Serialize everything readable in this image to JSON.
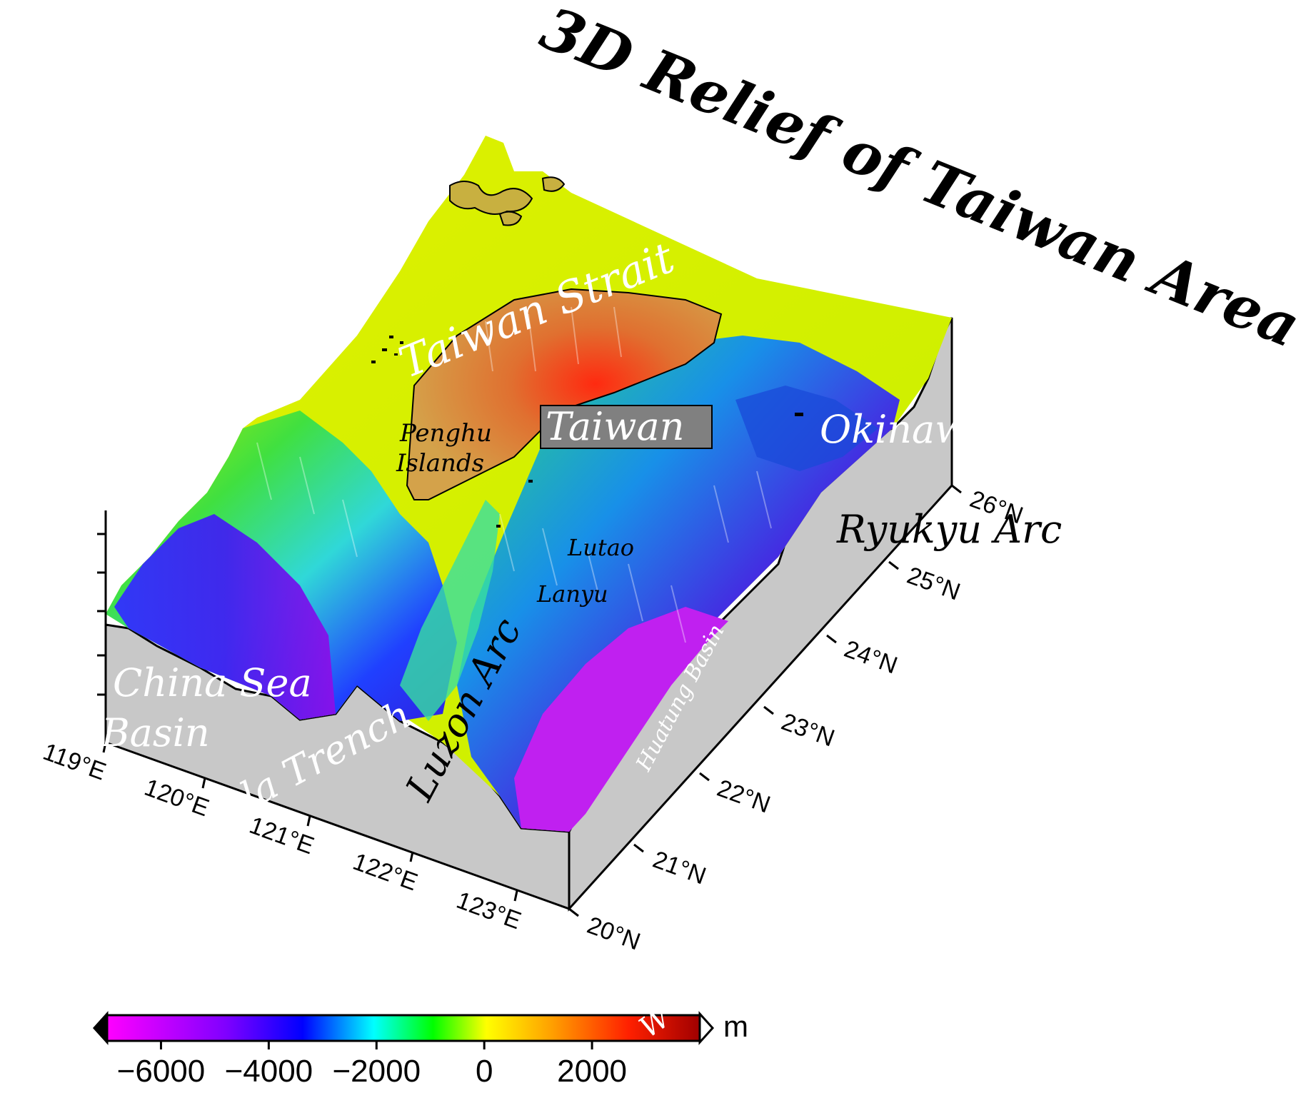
{
  "title": "3D Relief of Taiwan Area",
  "labels": {
    "taiwan_strait": "Taiwan Strait",
    "taiwan": "Taiwan",
    "penghu_line1": "Penghu",
    "penghu_line2": "Islands",
    "okinawa": "Okinaw",
    "ryukyu_arc": "Ryukyu Arc",
    "lutao": "Lutao",
    "lanyu": "Lanyu",
    "luzon_arc": "Luzon Arc",
    "huatung_basin": "Huatung Basin",
    "china_sea": "China Sea",
    "basin": "Basin",
    "trench": "la Trench",
    "colorbar_overlay": "W"
  },
  "axes": {
    "lon_ticks": [
      "119°E",
      "120°E",
      "121°E",
      "122°E",
      "123°E"
    ],
    "lat_ticks": [
      "20°N",
      "21°N",
      "22°N",
      "23°N",
      "24°N",
      "25°N",
      "26°N"
    ]
  },
  "colorbar": {
    "unit": "m",
    "ticks": [
      "−6000",
      "−4000",
      "−2000",
      "0",
      "2000"
    ],
    "tick_values": [
      -6000,
      -4000,
      -2000,
      0,
      2000
    ],
    "range": [
      -7000,
      4000
    ],
    "colors": [
      "#ff00ff",
      "#8000ff",
      "#0000ff",
      "#00ffff",
      "#00ff00",
      "#ffff00",
      "#ff8000",
      "#ff0000",
      "#b00000"
    ]
  }
}
